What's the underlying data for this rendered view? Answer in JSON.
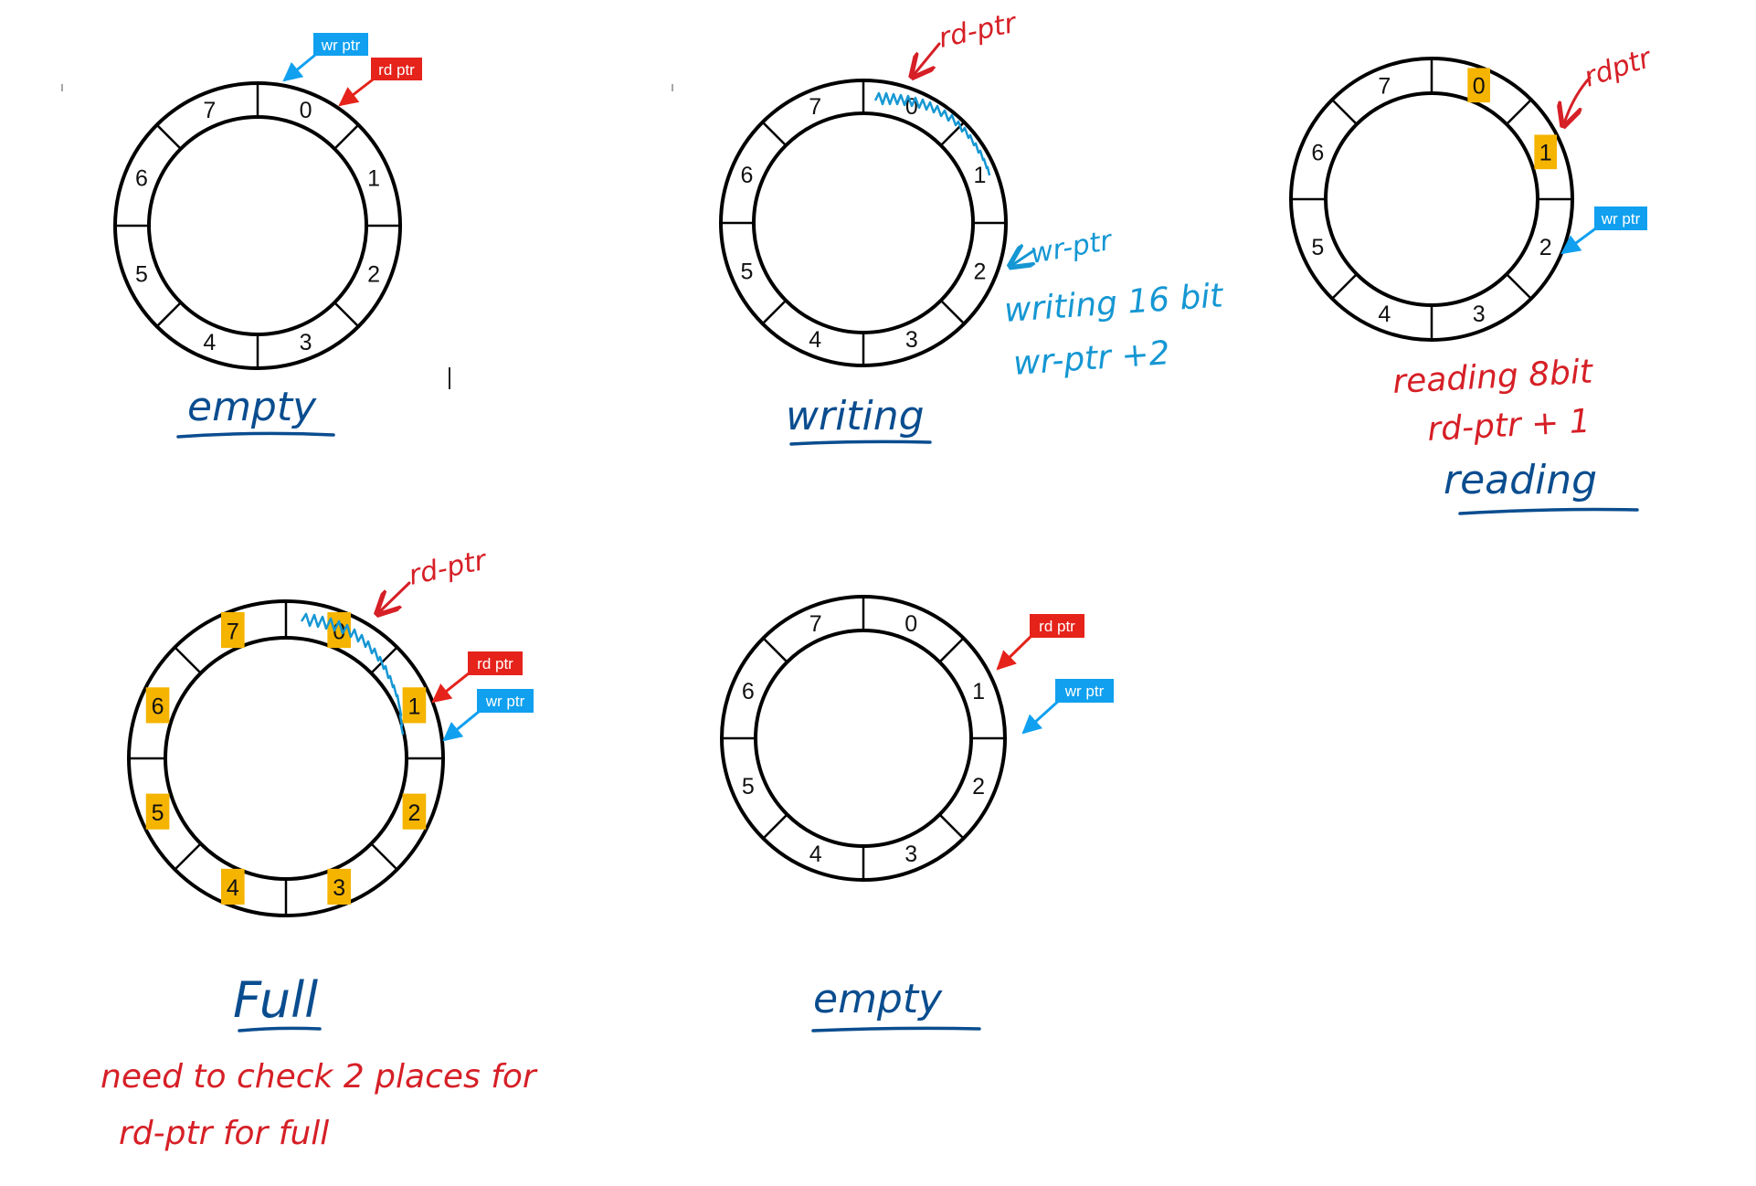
{
  "colors": {
    "ink_blue": "#0a4d8f",
    "note_blue": "#1597d3",
    "note_red": "#d61f26",
    "highlight": "#f5b400",
    "tag_red": "#e5231b",
    "tag_blue": "#10a0ef"
  },
  "diagrams": [
    {
      "segments": [
        "0",
        "1",
        "2",
        "3",
        "4",
        "5",
        "6",
        "7"
      ],
      "highlighted": [],
      "tags": [
        {
          "text": "wr ptr",
          "kind": "write"
        },
        {
          "text": "rd ptr",
          "kind": "read"
        }
      ],
      "handwritten_pointers": [],
      "title": "empty",
      "notes": []
    },
    {
      "segments": [
        "0",
        "1",
        "2",
        "3",
        "4",
        "5",
        "6",
        "7"
      ],
      "highlighted": [],
      "tags": [],
      "handwritten_pointers": [
        {
          "text": "rd-ptr",
          "kind": "read"
        },
        {
          "text": "wr-ptr",
          "kind": "write"
        }
      ],
      "title": "writing",
      "notes": [
        "writing 16 bit",
        "wr-ptr +2"
      ]
    },
    {
      "segments": [
        "0",
        "1",
        "2",
        "3",
        "4",
        "5",
        "6",
        "7"
      ],
      "highlighted": [
        "0",
        "1"
      ],
      "tags": [
        {
          "text": "wr ptr",
          "kind": "write"
        }
      ],
      "handwritten_pointers": [
        {
          "text": "rdptr",
          "kind": "read"
        }
      ],
      "title": "reading",
      "notes": [
        "reading 8bit",
        "rd-ptr + 1"
      ]
    },
    {
      "segments": [
        "0",
        "1",
        "2",
        "3",
        "4",
        "5",
        "6",
        "7"
      ],
      "highlighted": [
        "0",
        "1",
        "2",
        "3",
        "4",
        "5",
        "6",
        "7"
      ],
      "tags": [
        {
          "text": "rd ptr",
          "kind": "read"
        },
        {
          "text": "wr ptr",
          "kind": "write"
        }
      ],
      "handwritten_pointers": [
        {
          "text": "rd-ptr",
          "kind": "read"
        }
      ],
      "title": "Full",
      "notes": [
        "need to check 2 places for",
        "rd-ptr for full"
      ]
    },
    {
      "segments": [
        "0",
        "1",
        "2",
        "3",
        "4",
        "5",
        "6",
        "7"
      ],
      "highlighted": [],
      "tags": [
        {
          "text": "rd ptr",
          "kind": "read"
        },
        {
          "text": "wr ptr",
          "kind": "write"
        }
      ],
      "handwritten_pointers": [],
      "title": "empty",
      "notes": []
    }
  ]
}
